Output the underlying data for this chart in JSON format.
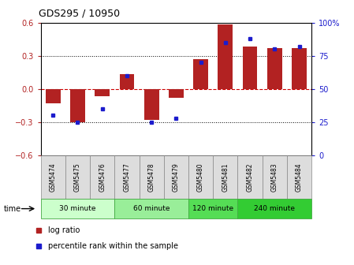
{
  "title": "GDS295 / 10950",
  "samples": [
    "GSM5474",
    "GSM5475",
    "GSM5476",
    "GSM5477",
    "GSM5478",
    "GSM5479",
    "GSM5480",
    "GSM5481",
    "GSM5482",
    "GSM5483",
    "GSM5484"
  ],
  "log_ratio": [
    -0.13,
    -0.3,
    -0.07,
    0.13,
    -0.28,
    -0.08,
    0.27,
    0.585,
    0.38,
    0.37,
    0.37
  ],
  "percentile": [
    30,
    25,
    35,
    60,
    25,
    28,
    70,
    85,
    88,
    80,
    82
  ],
  "ylim": [
    -0.6,
    0.6
  ],
  "y2lim": [
    0,
    100
  ],
  "yticks": [
    -0.6,
    -0.3,
    0.0,
    0.3,
    0.6
  ],
  "y2ticks": [
    0,
    25,
    50,
    75,
    100
  ],
  "bar_color": "#B22222",
  "dot_color": "#1C1CCC",
  "hline_color": "#CC0000",
  "grid_color": "#000000",
  "groups": [
    {
      "label": "30 minute",
      "start": 0,
      "end": 3,
      "color": "#CCFFCC"
    },
    {
      "label": "60 minute",
      "start": 3,
      "end": 6,
      "color": "#99EE99"
    },
    {
      "label": "120 minute",
      "start": 6,
      "end": 8,
      "color": "#55DD55"
    },
    {
      "label": "240 minute",
      "start": 8,
      "end": 11,
      "color": "#33CC33"
    }
  ],
  "time_label": "time",
  "legend_bar_label": "log ratio",
  "legend_dot_label": "percentile rank within the sample",
  "bar_width": 0.6
}
